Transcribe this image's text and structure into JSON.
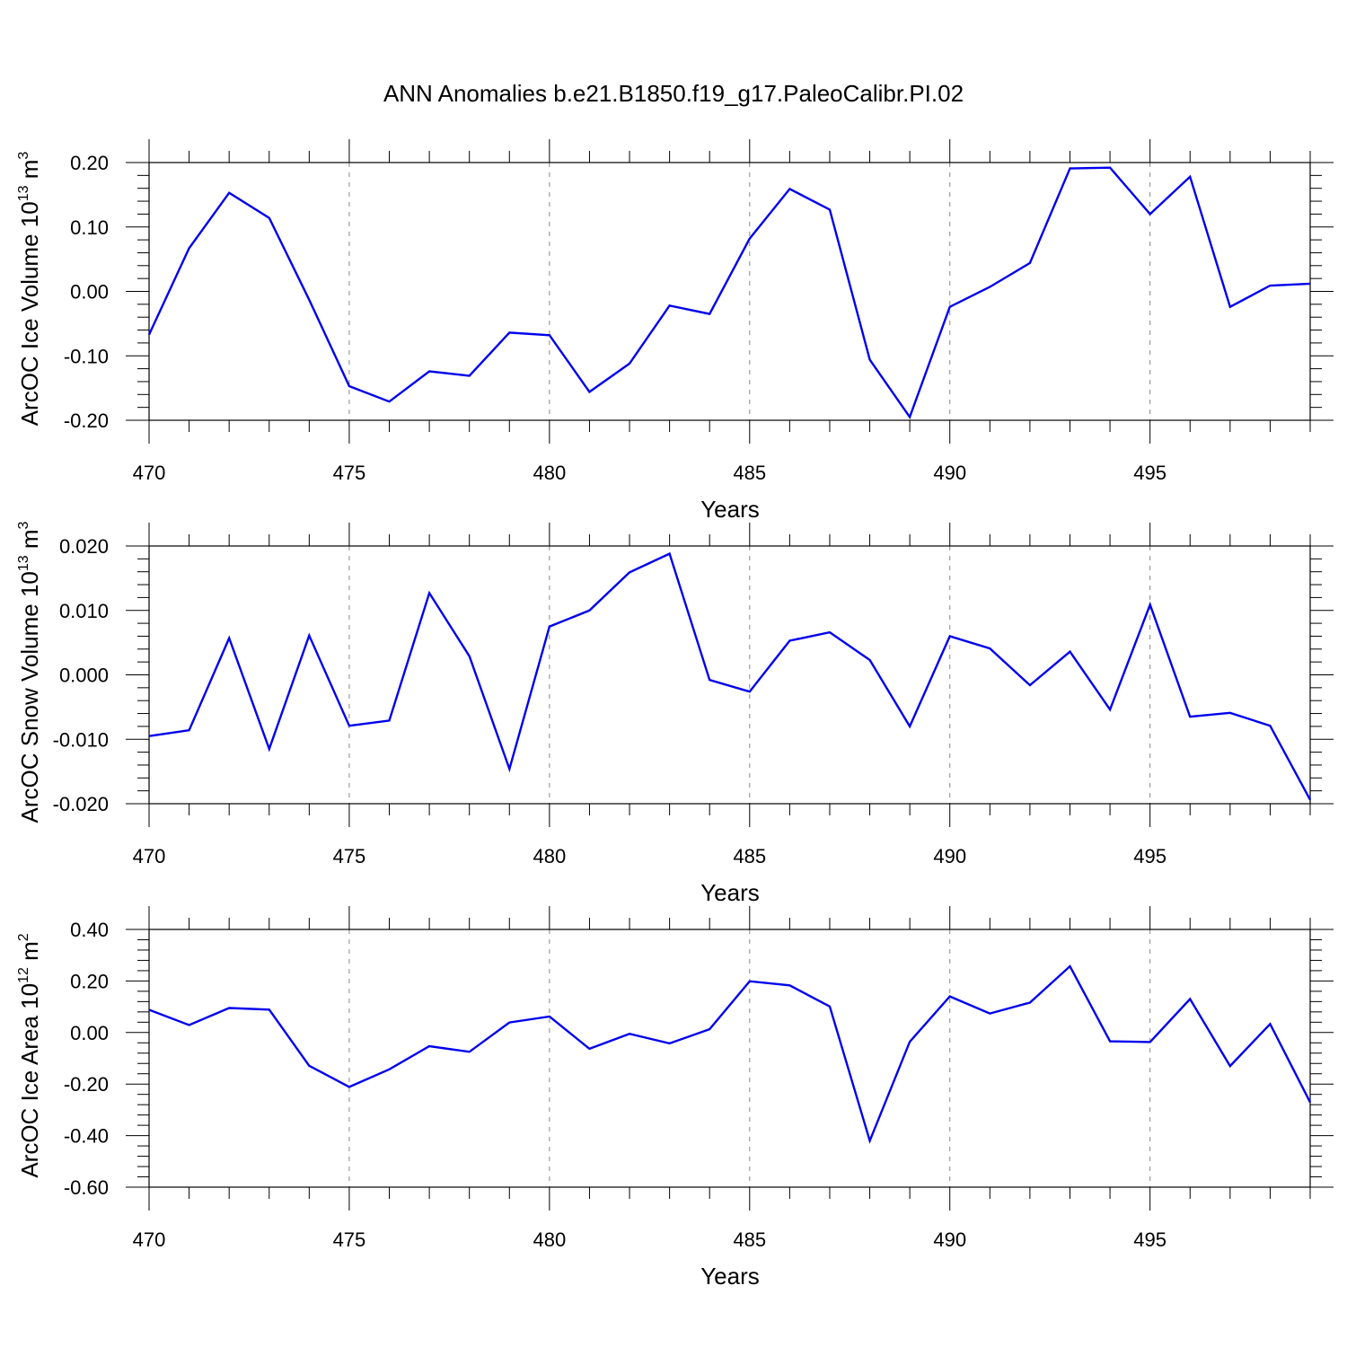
{
  "title": "ANN Anomalies b.e21.B1850.f19_g17.PaleoCalibr.PI.02",
  "colors": {
    "line": "#0000ee",
    "axis": "#000000",
    "grid": "#888888",
    "background": "#ffffff"
  },
  "chart_data": [
    {
      "type": "line",
      "xlabel": "Years",
      "ylabel": {
        "text": "ArcOC Ice Volume 10",
        "exponent": "13",
        "unit": "m",
        "unit_exponent": "3"
      },
      "xlim": [
        470,
        499
      ],
      "ylim": [
        -0.2,
        0.2
      ],
      "xticks": [
        "470",
        "475",
        "480",
        "485",
        "490",
        "495"
      ],
      "yticks": [
        "-0.20",
        "-0.10",
        "0.00",
        "0.10",
        "0.20"
      ],
      "grid": "vertical dashed at major x ticks",
      "x": [
        470,
        471,
        472,
        473,
        474,
        475,
        476,
        477,
        478,
        479,
        480,
        481,
        482,
        483,
        484,
        485,
        486,
        487,
        488,
        489,
        490,
        491,
        492,
        493,
        494,
        495,
        496,
        497,
        498,
        499
      ],
      "values": [
        -0.067,
        0.067,
        0.153,
        0.114,
        -0.013,
        -0.147,
        -0.171,
        -0.124,
        -0.131,
        -0.064,
        -0.068,
        -0.156,
        -0.112,
        -0.022,
        -0.035,
        0.082,
        0.159,
        0.127,
        -0.106,
        -0.195,
        -0.024,
        0.007,
        0.044,
        0.191,
        0.192,
        0.12,
        0.178,
        -0.024,
        0.009,
        0.012
      ]
    },
    {
      "type": "line",
      "xlabel": "Years",
      "ylabel": {
        "text": "ArcOC Snow Volume 10",
        "exponent": "13",
        "unit": "m",
        "unit_exponent": "3"
      },
      "xlim": [
        470,
        499
      ],
      "ylim": [
        -0.02,
        0.02
      ],
      "xticks": [
        "470",
        "475",
        "480",
        "485",
        "490",
        "495"
      ],
      "yticks": [
        "-0.020",
        "-0.010",
        "0.000",
        "0.010",
        "0.020"
      ],
      "grid": "vertical dashed at major x ticks",
      "x": [
        470,
        471,
        472,
        473,
        474,
        475,
        476,
        477,
        478,
        479,
        480,
        481,
        482,
        483,
        484,
        485,
        486,
        487,
        488,
        489,
        490,
        491,
        492,
        493,
        494,
        495,
        496,
        497,
        498,
        499
      ],
      "values": [
        -0.0095,
        -0.0086,
        0.0057,
        -0.0115,
        0.0061,
        -0.0079,
        -0.0071,
        0.0127,
        0.0029,
        -0.0146,
        0.0075,
        0.01,
        0.0159,
        0.0188,
        -0.0008,
        -0.0026,
        0.0053,
        0.0066,
        0.0023,
        -0.008,
        0.006,
        0.0041,
        -0.0016,
        0.0036,
        -0.0054,
        0.0109,
        -0.0065,
        -0.0059,
        -0.0079,
        -0.0194
      ]
    },
    {
      "type": "line",
      "xlabel": "Years",
      "ylabel": {
        "text": "ArcOC Ice Area 10",
        "exponent": "12",
        "unit": "m",
        "unit_exponent": "2"
      },
      "xlim": [
        470,
        499
      ],
      "ylim": [
        -0.6,
        0.4
      ],
      "xticks": [
        "470",
        "475",
        "480",
        "485",
        "490",
        "495"
      ],
      "yticks": [
        "-0.60",
        "-0.40",
        "-0.20",
        "0.00",
        "0.20",
        "0.40"
      ],
      "grid": "vertical dashed at major x ticks",
      "x": [
        470,
        471,
        472,
        473,
        474,
        475,
        476,
        477,
        478,
        479,
        480,
        481,
        482,
        483,
        484,
        485,
        486,
        487,
        488,
        489,
        490,
        491,
        492,
        493,
        494,
        495,
        496,
        497,
        498,
        499
      ],
      "values": [
        0.088,
        0.029,
        0.095,
        0.089,
        -0.129,
        -0.211,
        -0.143,
        -0.053,
        -0.075,
        0.039,
        0.062,
        -0.063,
        -0.005,
        -0.042,
        0.013,
        0.199,
        0.183,
        0.101,
        -0.42,
        -0.036,
        0.14,
        0.074,
        0.116,
        0.257,
        -0.034,
        -0.037,
        0.13,
        -0.13,
        0.033,
        -0.271
      ]
    }
  ]
}
